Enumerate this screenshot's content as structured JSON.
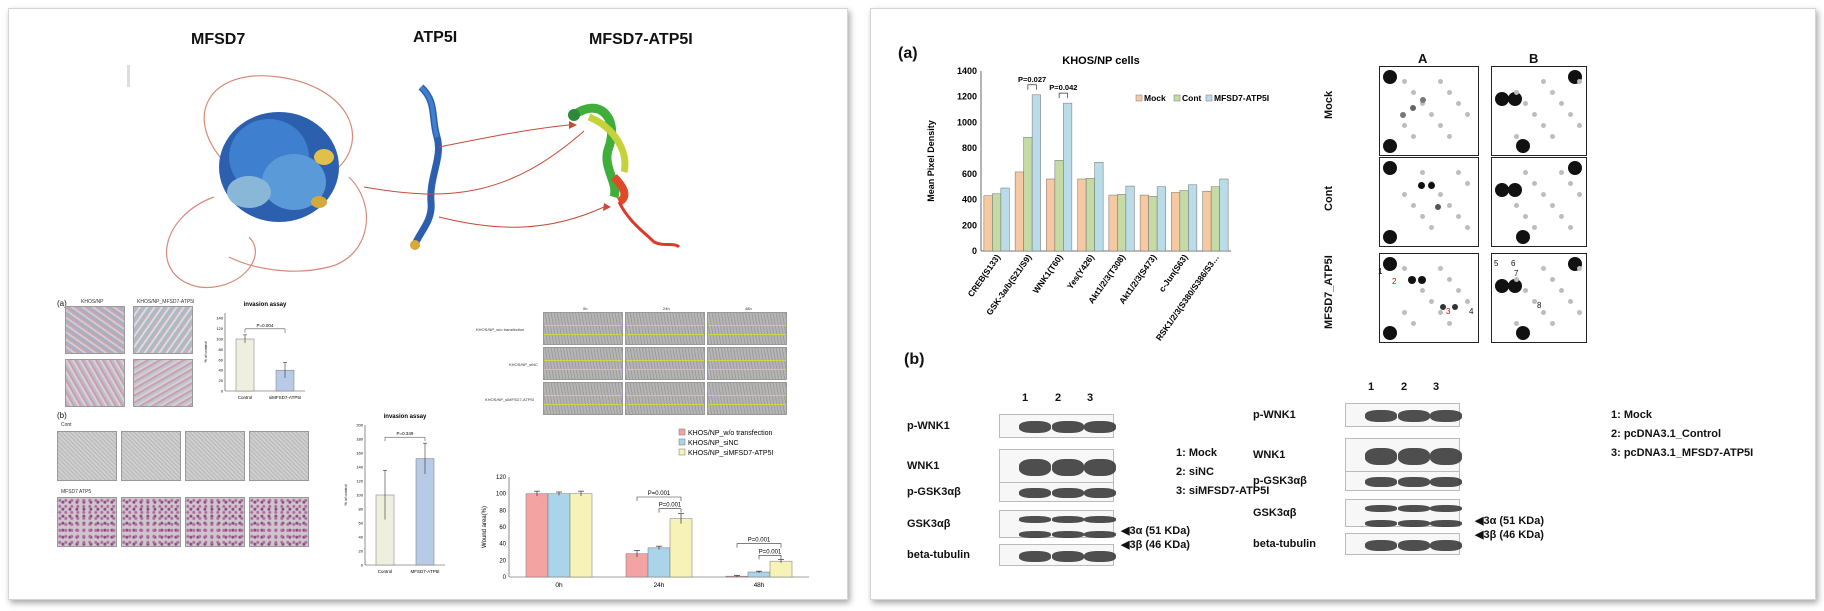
{
  "left": {
    "protein_titles": [
      "MFSD7",
      "ATP5I",
      "MFSD7-ATP5I"
    ],
    "invasion_a": {
      "label": "(a)",
      "cell_labels": [
        "KHOS/NP",
        "KHOS/NP_MFSD7-ATP5I"
      ],
      "chart_data": {
        "type": "bar",
        "title": "invasion assay",
        "categories": [
          "Control",
          "siMFSD7-ATP5I"
        ],
        "values": [
          100,
          40
        ],
        "errors": [
          8,
          15
        ],
        "ylabel": "% of control",
        "ylim": [
          0,
          150
        ],
        "yticks": [
          0,
          20,
          40,
          60,
          80,
          100,
          120,
          140
        ],
        "annotation": "P=0.004",
        "colors": [
          "#efefdf",
          "#b8cbe6"
        ]
      }
    },
    "invasion_b": {
      "label": "(b)",
      "row_labels": [
        "Cont",
        "MFSD7 ATP5"
      ],
      "chart_data": {
        "type": "bar",
        "title": "invasion assay",
        "categories": [
          "Control",
          "MFSD7-ATP5I"
        ],
        "values": [
          100,
          152
        ],
        "errors": [
          35,
          22
        ],
        "ylabel": "% of control",
        "ylim": [
          0,
          200
        ],
        "yticks": [
          0,
          20,
          40,
          60,
          80,
          100,
          120,
          140,
          160,
          180,
          200
        ],
        "annotation": "P=0.349",
        "colors": [
          "#efefdf",
          "#b8cbe6"
        ]
      }
    },
    "wound": {
      "time_labels": [
        "0h",
        "24h",
        "48h"
      ],
      "row_labels": [
        "KHOS/NP_w/o transfection",
        "KHOS/NP_siNC",
        "KHOS/NP_siMFSD7-ATP5I"
      ],
      "chart_data": {
        "type": "bar",
        "categories": [
          "0h",
          "24h",
          "48h"
        ],
        "series": [
          {
            "name": "KHOS/NP_w/o transfection",
            "values": [
              100,
              28,
              1
            ],
            "errors": [
              3,
              4,
              1
            ],
            "color": "#f4a3a3"
          },
          {
            "name": "KHOS/NP_siNC",
            "values": [
              100,
              35,
              6
            ],
            "errors": [
              2,
              2,
              1
            ],
            "color": "#a9d4ea"
          },
          {
            "name": "KHOS/NP_siMFSD7-ATP5I",
            "values": [
              100,
              70,
              19
            ],
            "errors": [
              3,
              6,
              2
            ],
            "color": "#f7f2b8"
          }
        ],
        "ylabel": "Wound area(%)",
        "ylim": [
          0,
          120
        ],
        "yticks": [
          0,
          20,
          40,
          60,
          80,
          100,
          120
        ],
        "annotations": [
          "P=0.001",
          "P=0.001",
          "P=0.001",
          "P=0.001"
        ]
      }
    }
  },
  "right": {
    "label_a": "(a)",
    "label_b": "(b)",
    "chart_data": {
      "type": "bar",
      "title": "KHOS/NP cells",
      "categories": [
        "CREB(S133)",
        "GSK-3a/b(S21/S9)",
        "WNK1(T60)",
        "Yes(Y426)",
        "Akt1/2/3(T308)",
        "Akt1/2/3(S473)",
        "c-Jun(S63)",
        "RSK1/2/3(S380/S386/S3…"
      ],
      "series": [
        {
          "name": "Mock",
          "values": [
            430,
            615,
            560,
            560,
            435,
            435,
            455,
            465
          ],
          "color": "#f7c9a3"
        },
        {
          "name": "Cont",
          "values": [
            445,
            885,
            705,
            565,
            440,
            425,
            470,
            500
          ],
          "color": "#c5dba6"
        },
        {
          "name": "MFSD7-ATP5I",
          "values": [
            490,
            1215,
            1150,
            690,
            505,
            500,
            515,
            560
          ],
          "color": "#b9dce8"
        }
      ],
      "ylabel": "Mean Pixel Density",
      "ylim": [
        0,
        1400
      ],
      "yticks": [
        0,
        200,
        400,
        600,
        800,
        1000,
        1200,
        1400
      ],
      "annotations": [
        "P=0.027",
        "P=0.042"
      ]
    },
    "array": {
      "col_labels": [
        "A",
        "B"
      ],
      "row_labels": [
        "Mock",
        "Cont",
        "MFSD7_ATP5I"
      ],
      "spot_numbers": [
        "1",
        "2",
        "3",
        "4",
        "5",
        "6",
        "7",
        "8"
      ]
    },
    "blot1": {
      "lanes": [
        "1",
        "2",
        "3"
      ],
      "rows": [
        "p-WNK1",
        "WNK1",
        "p-GSK3αβ",
        "GSK3αβ",
        "beta-tubulin"
      ],
      "legend": [
        "1: Mock",
        "2: siNC",
        "3: siMFSD7-ATP5I"
      ],
      "markers": [
        "◀3α (51 KDa)",
        "◀3β (46 KDa)"
      ]
    },
    "blot2": {
      "lanes": [
        "1",
        "2",
        "3"
      ],
      "rows": [
        "p-WNK1",
        "WNK1",
        "p-GSK3αβ",
        "GSK3αβ",
        "beta-tubulin"
      ],
      "legend": [
        "1: Mock",
        "2: pcDNA3.1_Control",
        "3: pcDNA3.1_MFSD7-ATP5I"
      ],
      "markers": [
        "◀3α (51 KDa)",
        "◀3β (46 KDa)"
      ]
    }
  }
}
